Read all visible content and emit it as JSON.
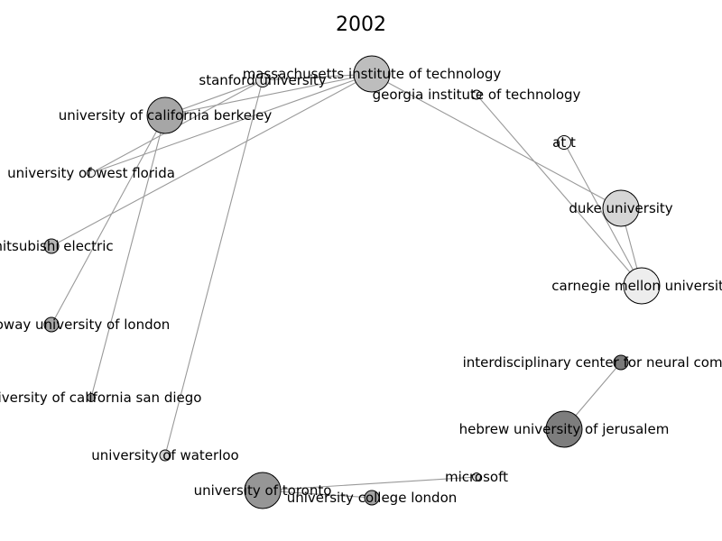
{
  "title": "2002",
  "nodes": [
    {
      "id": "mit",
      "label": "massachusetts institute of technology",
      "fill": "#bdbdbd"
    },
    {
      "id": "stanford",
      "label": "stanford university",
      "fill": "#e4e4e4"
    },
    {
      "id": "georgia",
      "label": "georgia institute of technology",
      "fill": "#f2f2f2"
    },
    {
      "id": "berkeley",
      "label": "university of california berkeley",
      "fill": "#a6a6a6"
    },
    {
      "id": "att",
      "label": "at t",
      "fill": "#f5f5f5"
    },
    {
      "id": "westflorida",
      "label": "university of west florida",
      "fill": "#f5f5f5"
    },
    {
      "id": "duke",
      "label": "duke university",
      "fill": "#d6d6d6"
    },
    {
      "id": "mitsubishi",
      "label": "mitsubishi electric",
      "fill": "#b5b5b5"
    },
    {
      "id": "cmu",
      "label": "carnegie mellon university",
      "fill": "#ededed"
    },
    {
      "id": "royalholloway",
      "label": "royal holloway university of london",
      "fill": "#a6a6a6"
    },
    {
      "id": "icnc",
      "label": "interdisciplinary center for neural computation",
      "fill": "#7a7a7a"
    },
    {
      "id": "ucsd",
      "label": "university of california san diego",
      "fill": "#a0a0a0"
    },
    {
      "id": "hebrew",
      "label": "hebrew university of jerusalem",
      "fill": "#7d7d7d"
    },
    {
      "id": "waterloo",
      "label": "university of waterloo",
      "fill": "#d0d0d0"
    },
    {
      "id": "microsoft",
      "label": "microsoft",
      "fill": "#d8d8d8"
    },
    {
      "id": "toronto",
      "label": "university of toronto",
      "fill": "#969696"
    },
    {
      "id": "ucl",
      "label": "university college london",
      "fill": "#a3a3a3"
    }
  ],
  "edges": [
    [
      "mit",
      "berkeley"
    ],
    [
      "mit",
      "stanford"
    ],
    [
      "mit",
      "westflorida"
    ],
    [
      "mit",
      "mitsubishi"
    ],
    [
      "mit",
      "duke"
    ],
    [
      "stanford",
      "berkeley"
    ],
    [
      "stanford",
      "waterloo"
    ],
    [
      "stanford",
      "westflorida"
    ],
    [
      "berkeley",
      "royalholloway"
    ],
    [
      "berkeley",
      "ucsd"
    ],
    [
      "georgia",
      "cmu"
    ],
    [
      "att",
      "cmu"
    ],
    [
      "duke",
      "cmu"
    ],
    [
      "icnc",
      "hebrew"
    ],
    [
      "toronto",
      "microsoft"
    ],
    [
      "toronto",
      "ucl"
    ]
  ]
}
